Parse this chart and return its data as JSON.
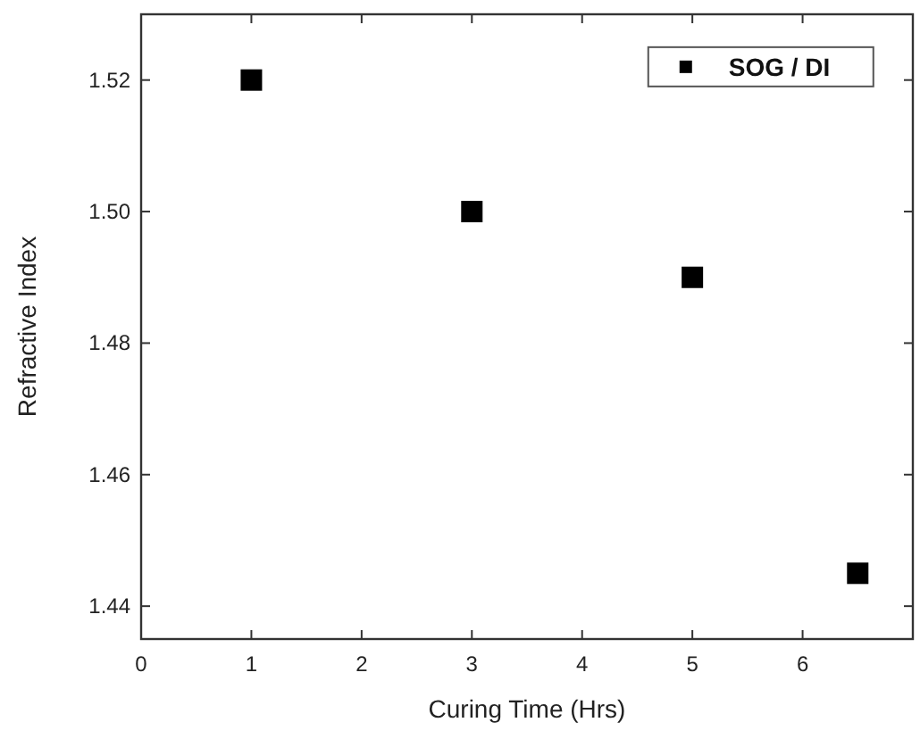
{
  "chart_data": {
    "type": "scatter",
    "xlabel": "Curing Time (Hrs)",
    "ylabel": "Refractive Index",
    "x": [
      1,
      3,
      5,
      6.5
    ],
    "series": [
      {
        "name": "SOG / DI",
        "color": "#000000",
        "values": [
          1.52,
          1.5,
          1.49,
          1.445
        ]
      }
    ],
    "xlim": [
      0,
      7
    ],
    "xticks": [
      0,
      1,
      2,
      3,
      4,
      5,
      6
    ],
    "ylim": [
      1.435,
      1.53
    ],
    "yticks": [
      {
        "value": 1.44,
        "label": "1.44"
      },
      {
        "value": 1.46,
        "label": "1.46"
      },
      {
        "value": 1.48,
        "label": "1.48"
      },
      {
        "value": 1.5,
        "label": "1.50"
      },
      {
        "value": 1.52,
        "label": "1.52"
      }
    ],
    "marker": "square",
    "legend": "top right",
    "grid": false
  }
}
